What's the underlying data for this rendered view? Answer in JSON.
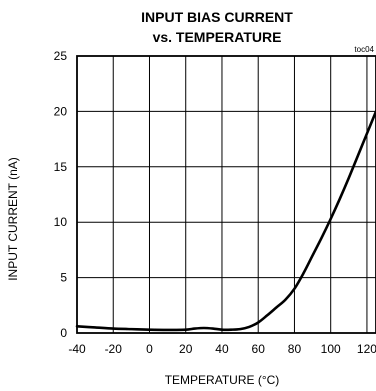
{
  "chart_data": {
    "type": "line",
    "title_line1": "INPUT BIAS CURRENT",
    "title_line2": "vs. TEMPERATURE",
    "figure_code": "toc04",
    "xlabel": "TEMPERATURE (°C)",
    "ylabel": "INPUT CURRENT (nA)",
    "xlim": [
      -40,
      125
    ],
    "ylim": [
      0,
      25
    ],
    "x_ticks": [
      -40,
      -20,
      0,
      20,
      40,
      60,
      80,
      100,
      120
    ],
    "x_tick_labels": [
      "-40",
      "-20",
      "0",
      "20",
      "40",
      "60",
      "80",
      "100",
      "120"
    ],
    "y_ticks": [
      0,
      5,
      10,
      15,
      20,
      25
    ],
    "y_tick_labels": [
      "0",
      "5",
      "10",
      "15",
      "20",
      "25"
    ],
    "grid": true,
    "series": [
      {
        "x": [
          -40,
          -30,
          -20,
          -10,
          0,
          10,
          20,
          25,
          30,
          35,
          40,
          45,
          50,
          55,
          60,
          65,
          70,
          75,
          80,
          85,
          90,
          95,
          100,
          105,
          110,
          115,
          120,
          125
        ],
        "y": [
          0.6,
          0.5,
          0.4,
          0.35,
          0.3,
          0.28,
          0.3,
          0.4,
          0.45,
          0.4,
          0.3,
          0.3,
          0.35,
          0.55,
          0.95,
          1.6,
          2.3,
          3.0,
          4.0,
          5.4,
          7.0,
          8.6,
          10.3,
          12.1,
          14.0,
          16.0,
          18.0,
          20.0
        ]
      }
    ]
  }
}
